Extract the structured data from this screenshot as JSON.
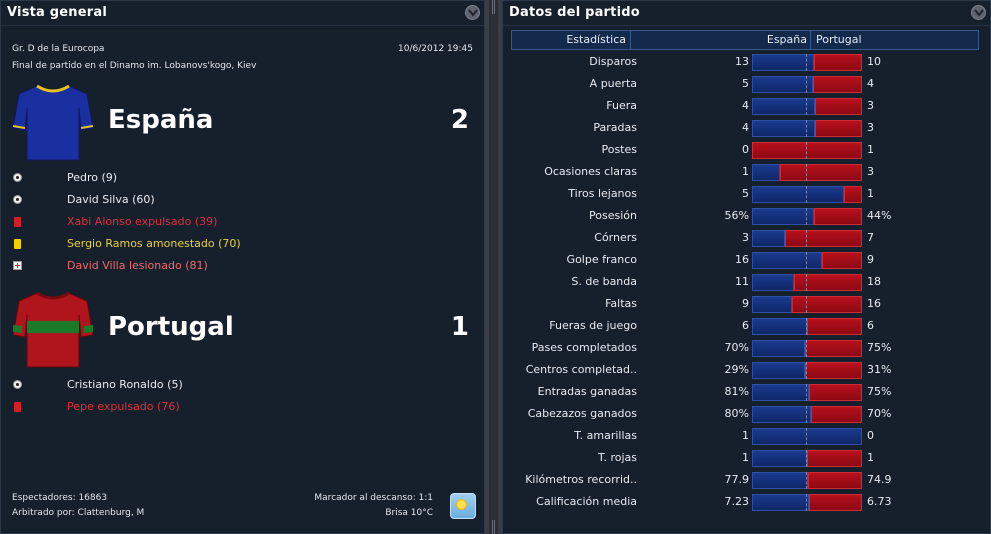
{
  "left_panel": {
    "title": "Vista general",
    "competition": "Gr. D de la Eurocopa",
    "datetime": "10/6/2012 19:45",
    "status": "Final de partido en el Dinamo im. Lobanovs'kogo, Kiev",
    "home": {
      "name": "España",
      "score": "2",
      "shirt_colors": {
        "body": "#1a2fa0",
        "trim": "#e6c21a"
      },
      "events": [
        {
          "type": "goal",
          "icon": "ball-icon",
          "text": "Pedro (9)",
          "color": "#e8ebf0"
        },
        {
          "type": "goal",
          "icon": "ball-icon",
          "text": "David Silva (60)",
          "color": "#e8ebf0"
        },
        {
          "type": "red",
          "icon": "red-card-icon",
          "text": "Xabi Alonso expulsado (39)",
          "color": "#e0303a"
        },
        {
          "type": "yellow",
          "icon": "yellow-card-icon",
          "text": "Sergio Ramos amonestado (70)",
          "color": "#e6d23a"
        },
        {
          "type": "injury",
          "icon": "injury-icon",
          "text": "David Villa lesionado (81)",
          "color": "#ef6a6a"
        }
      ]
    },
    "away": {
      "name": "Portugal",
      "score": "1",
      "shirt_colors": {
        "body": "#b0141c",
        "trim": "#1a7a2a"
      },
      "events": [
        {
          "type": "goal",
          "icon": "ball-icon",
          "text": "Cristiano Ronaldo (5)",
          "color": "#e8ebf0"
        },
        {
          "type": "red",
          "icon": "red-card-icon",
          "text": "Pepe expulsado (76)",
          "color": "#e0303a"
        }
      ]
    },
    "spectators": "Espectadores: 16863",
    "referee": "Arbitrado por: Clattenburg, M",
    "halftime": "Marcador al descanso: 1:1",
    "weather": "Brisa 10°C",
    "weather_icon": "sun-icon"
  },
  "right_panel": {
    "title": "Datos del partido",
    "headers": {
      "stat": "Estadística",
      "home": "España",
      "away": "Portugal"
    },
    "colors": {
      "home": "#13307c",
      "away": "#a80e18"
    },
    "stats": [
      {
        "label": "Disparos",
        "home": "13",
        "away": "10",
        "share": 0.565
      },
      {
        "label": "A puerta",
        "home": "5",
        "away": "4",
        "share": 0.556
      },
      {
        "label": "Fuera",
        "home": "4",
        "away": "3",
        "share": 0.571
      },
      {
        "label": "Paradas",
        "home": "4",
        "away": "3",
        "share": 0.571
      },
      {
        "label": "Postes",
        "home": "0",
        "away": "1",
        "share": 0.0
      },
      {
        "label": "Ocasiones claras",
        "home": "1",
        "away": "3",
        "share": 0.25
      },
      {
        "label": "Tiros lejanos",
        "home": "5",
        "away": "1",
        "share": 0.833
      },
      {
        "label": "Posesión",
        "home": "56%",
        "away": "44%",
        "share": 0.56
      },
      {
        "label": "Córners",
        "home": "3",
        "away": "7",
        "share": 0.3
      },
      {
        "label": "Golpe franco",
        "home": "16",
        "away": "9",
        "share": 0.64
      },
      {
        "label": "S. de banda",
        "home": "11",
        "away": "18",
        "share": 0.379
      },
      {
        "label": "Faltas",
        "home": "9",
        "away": "16",
        "share": 0.36
      },
      {
        "label": "Fueras de juego",
        "home": "6",
        "away": "6",
        "share": 0.5
      },
      {
        "label": "Pases completados",
        "home": "70%",
        "away": "75%",
        "share": 0.483
      },
      {
        "label": "Centros completad..",
        "home": "29%",
        "away": "31%",
        "share": 0.483
      },
      {
        "label": "Entradas ganadas",
        "home": "81%",
        "away": "75%",
        "share": 0.519
      },
      {
        "label": "Cabezazos ganados",
        "home": "80%",
        "away": "70%",
        "share": 0.533
      },
      {
        "label": "T. amarillas",
        "home": "1",
        "away": "0",
        "share": 1.0
      },
      {
        "label": "T. rojas",
        "home": "1",
        "away": "1",
        "share": 0.5
      },
      {
        "label": "Kilómetros recorrid..",
        "home": "77.9",
        "away": "74.9",
        "share": 0.51
      },
      {
        "label": "Calificación media",
        "home": "7.23",
        "away": "6.73",
        "share": 0.518
      }
    ]
  }
}
